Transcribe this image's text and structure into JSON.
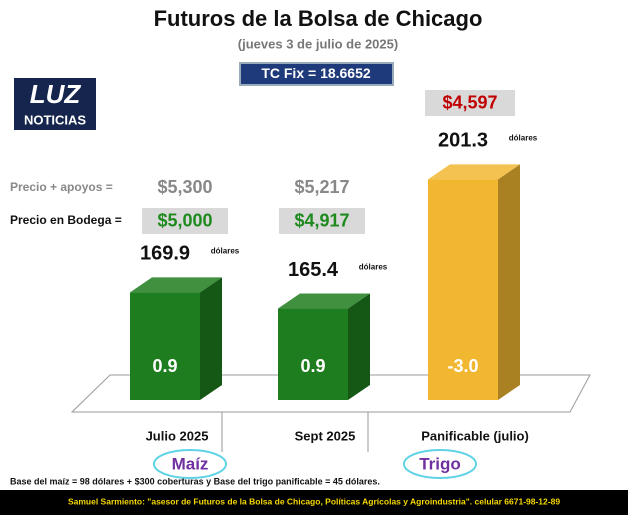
{
  "chart_data": {
    "type": "bar3d",
    "title": "Futuros de la Bolsa de Chicago",
    "subtitle": "(jueves 3 de julio de 2025)",
    "exchange_rate": "TC Fix = 18.6652",
    "logo": {
      "top": "LUZ",
      "bottom": "NOTICIAS"
    },
    "categories": [
      "Julio 2025",
      "Sept 2025",
      "Panificable (julio)"
    ],
    "values": [
      169.9,
      165.4,
      201.3
    ],
    "unit": "dólares",
    "colors": [
      "#1e7d1e",
      "#1e7d1e",
      "#f2b731"
    ],
    "changes": [
      0.9,
      0.9,
      -3.0
    ],
    "change_labels": [
      "0.9",
      "0.9",
      "-3.0"
    ],
    "row_labels": [
      "Precio + apoyos =",
      "Precio en Bodega ="
    ],
    "price_support": [
      {
        "value": 5300,
        "label": "$5,300"
      },
      {
        "value": 5217,
        "label": "$5,217"
      }
    ],
    "price_warehouse": [
      {
        "value": 5000,
        "label": "$5,000"
      },
      {
        "value": 4917,
        "label": "$4,917"
      }
    ],
    "wheat_price": {
      "value": 4597,
      "label": "$4,597"
    },
    "groups": [
      "Maíz",
      "Trigo"
    ],
    "footnote": "Base del maíz = 98 dólares + $300 coberturas y Base del trigo panificable = 45 dólares.",
    "footer": "Samuel Sarmiento: \"asesor de Futuros de la Bolsa de Chicago, Políticas Agrícolas y Agroindustria\". celular 6671-98-12-89"
  }
}
